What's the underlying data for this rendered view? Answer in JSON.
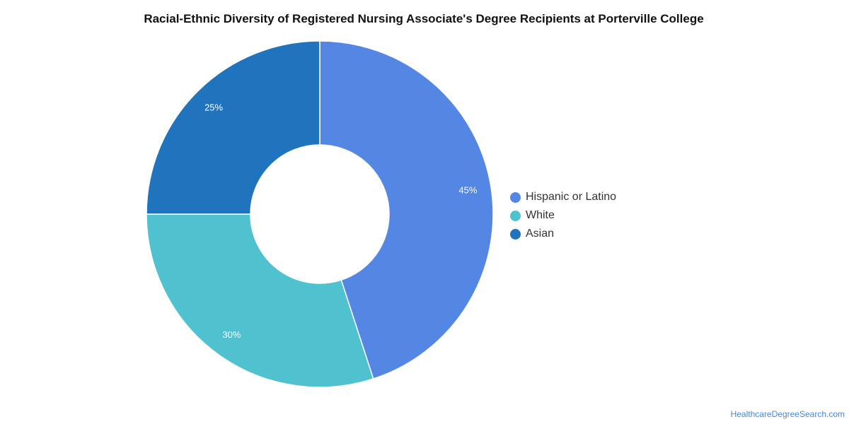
{
  "chart_data": {
    "type": "pie",
    "title": "Racial-Ethnic Diversity of Registered Nursing Associate's Degree Recipients at Porterville College",
    "categories": [
      "Hispanic or Latino",
      "White",
      "Asian"
    ],
    "values": [
      45,
      30,
      25
    ],
    "value_labels": [
      "45%",
      "30%",
      "25%"
    ],
    "colors": [
      "#5486e4",
      "#50c1cf",
      "#1f74bd"
    ],
    "donut": true,
    "legend_position": "right"
  },
  "footer": {
    "source": "HealthcareDegreeSearch.com"
  }
}
